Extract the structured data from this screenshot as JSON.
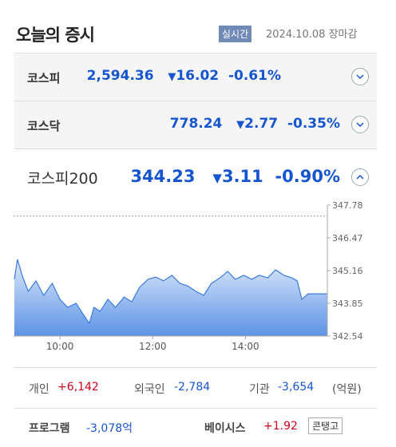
{
  "header": {
    "title": "오늘의 증시",
    "badge": "실시간",
    "date": "2024.10.08",
    "status": "장마감"
  },
  "indices": [
    {
      "name": "코스피",
      "value": "2,594.36",
      "change": "16.02",
      "rate": "-0.61%"
    },
    {
      "name": "코스닥",
      "value": "778.24",
      "change": "2.77",
      "rate": "-0.35%"
    },
    {
      "name": "코스피200",
      "value": "344.23",
      "change": "3.11",
      "rate": "-0.90%"
    }
  ],
  "chart_data": {
    "type": "area",
    "color": "#3a7be0",
    "x": [
      541,
      545,
      551,
      559,
      569,
      579,
      590,
      600,
      610,
      621,
      631,
      638,
      644,
      652,
      662,
      672,
      683,
      693,
      703,
      714,
      724,
      734,
      745,
      755,
      765,
      776,
      786,
      796,
      807,
      817,
      827,
      838,
      848,
      858,
      869,
      879,
      890,
      900,
      907,
      913,
      921,
      930,
      946
    ],
    "values": [
      344.81,
      345.61,
      344.97,
      344.33,
      344.75,
      344.17,
      344.65,
      344.01,
      343.69,
      343.85,
      343.37,
      343.05,
      343.69,
      343.53,
      344.01,
      343.69,
      344.1,
      343.91,
      344.49,
      344.81,
      344.9,
      344.75,
      344.97,
      344.65,
      344.55,
      344.33,
      344.17,
      344.65,
      344.87,
      345.13,
      344.81,
      344.97,
      344.81,
      344.97,
      344.87,
      345.19,
      344.97,
      344.87,
      344.75,
      344.01,
      344.23,
      344.23,
      344.23
    ],
    "reference": 347.34,
    "xlim": [
      540,
      946
    ],
    "xticks": [
      {
        "value": 600,
        "label": "10:00"
      },
      {
        "value": 720,
        "label": "12:00"
      },
      {
        "value": 840,
        "label": "14:00"
      }
    ],
    "ylim": [
      342.54,
      347.78
    ],
    "yticks": [
      342.54,
      343.85,
      345.16,
      346.47,
      347.78
    ]
  },
  "investors": {
    "items": [
      {
        "label": "개인",
        "value": "+6,142"
      },
      {
        "label": "외국인",
        "value": "-2,784"
      },
      {
        "label": "기관",
        "value": "-3,654"
      }
    ],
    "unit": "(억원)"
  },
  "program": {
    "items": [
      {
        "label": "프로그램",
        "value": "-3,078억"
      },
      {
        "label": "베이시스",
        "value": "+1.92"
      }
    ],
    "tag": "콘탱고"
  }
}
